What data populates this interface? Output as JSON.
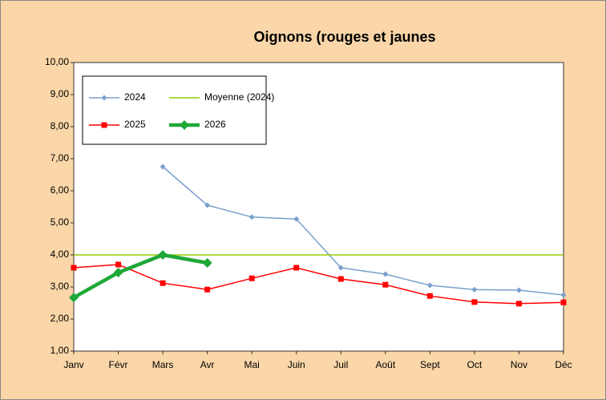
{
  "chart_data": {
    "type": "line",
    "title": "Oignons (rouges et jaunes",
    "categories": [
      "Janv",
      "Févr",
      "Mars",
      "Avr",
      "Mai",
      "Juin",
      "Juil",
      "Août",
      "Sept",
      "Oct",
      "Nov",
      "Déc"
    ],
    "series": [
      {
        "name": "2024",
        "color": "#7aa0cc",
        "marker": "diamond",
        "values": [
          null,
          null,
          6.75,
          5.55,
          5.18,
          5.12,
          3.6,
          3.4,
          3.05,
          2.92,
          2.9,
          2.75
        ]
      },
      {
        "name": "Moyenne (2024)",
        "color": "#99cc00",
        "marker": "none",
        "values": [
          4,
          4,
          4,
          4,
          4,
          4,
          4,
          4,
          4,
          4,
          4,
          4
        ]
      },
      {
        "name": "2025",
        "color": "#ff0000",
        "marker": "square",
        "values": [
          3.6,
          3.7,
          3.12,
          2.92,
          3.27,
          3.6,
          3.25,
          3.07,
          2.72,
          2.53,
          2.48,
          2.52
        ]
      },
      {
        "name": "2026",
        "color": "#1fa838",
        "marker": "diamond-large",
        "values": [
          2.67,
          3.45,
          4.0,
          3.75,
          null,
          null,
          null,
          null,
          null,
          null,
          null,
          null
        ]
      }
    ],
    "ylim": [
      1,
      10
    ],
    "yticks": [
      {
        "value": 1,
        "label": "1,00"
      },
      {
        "value": 2,
        "label": "2,00"
      },
      {
        "value": 3,
        "label": "3,00"
      },
      {
        "value": 4,
        "label": "4,00"
      },
      {
        "value": 5,
        "label": "5,00"
      },
      {
        "value": 6,
        "label": "6,00"
      },
      {
        "value": 7,
        "label": "7,00"
      },
      {
        "value": 8,
        "label": "8,00"
      },
      {
        "value": 9,
        "label": "9,00"
      },
      {
        "value": 10,
        "label": "10,00"
      }
    ],
    "grid": false,
    "legend": "top-left"
  }
}
